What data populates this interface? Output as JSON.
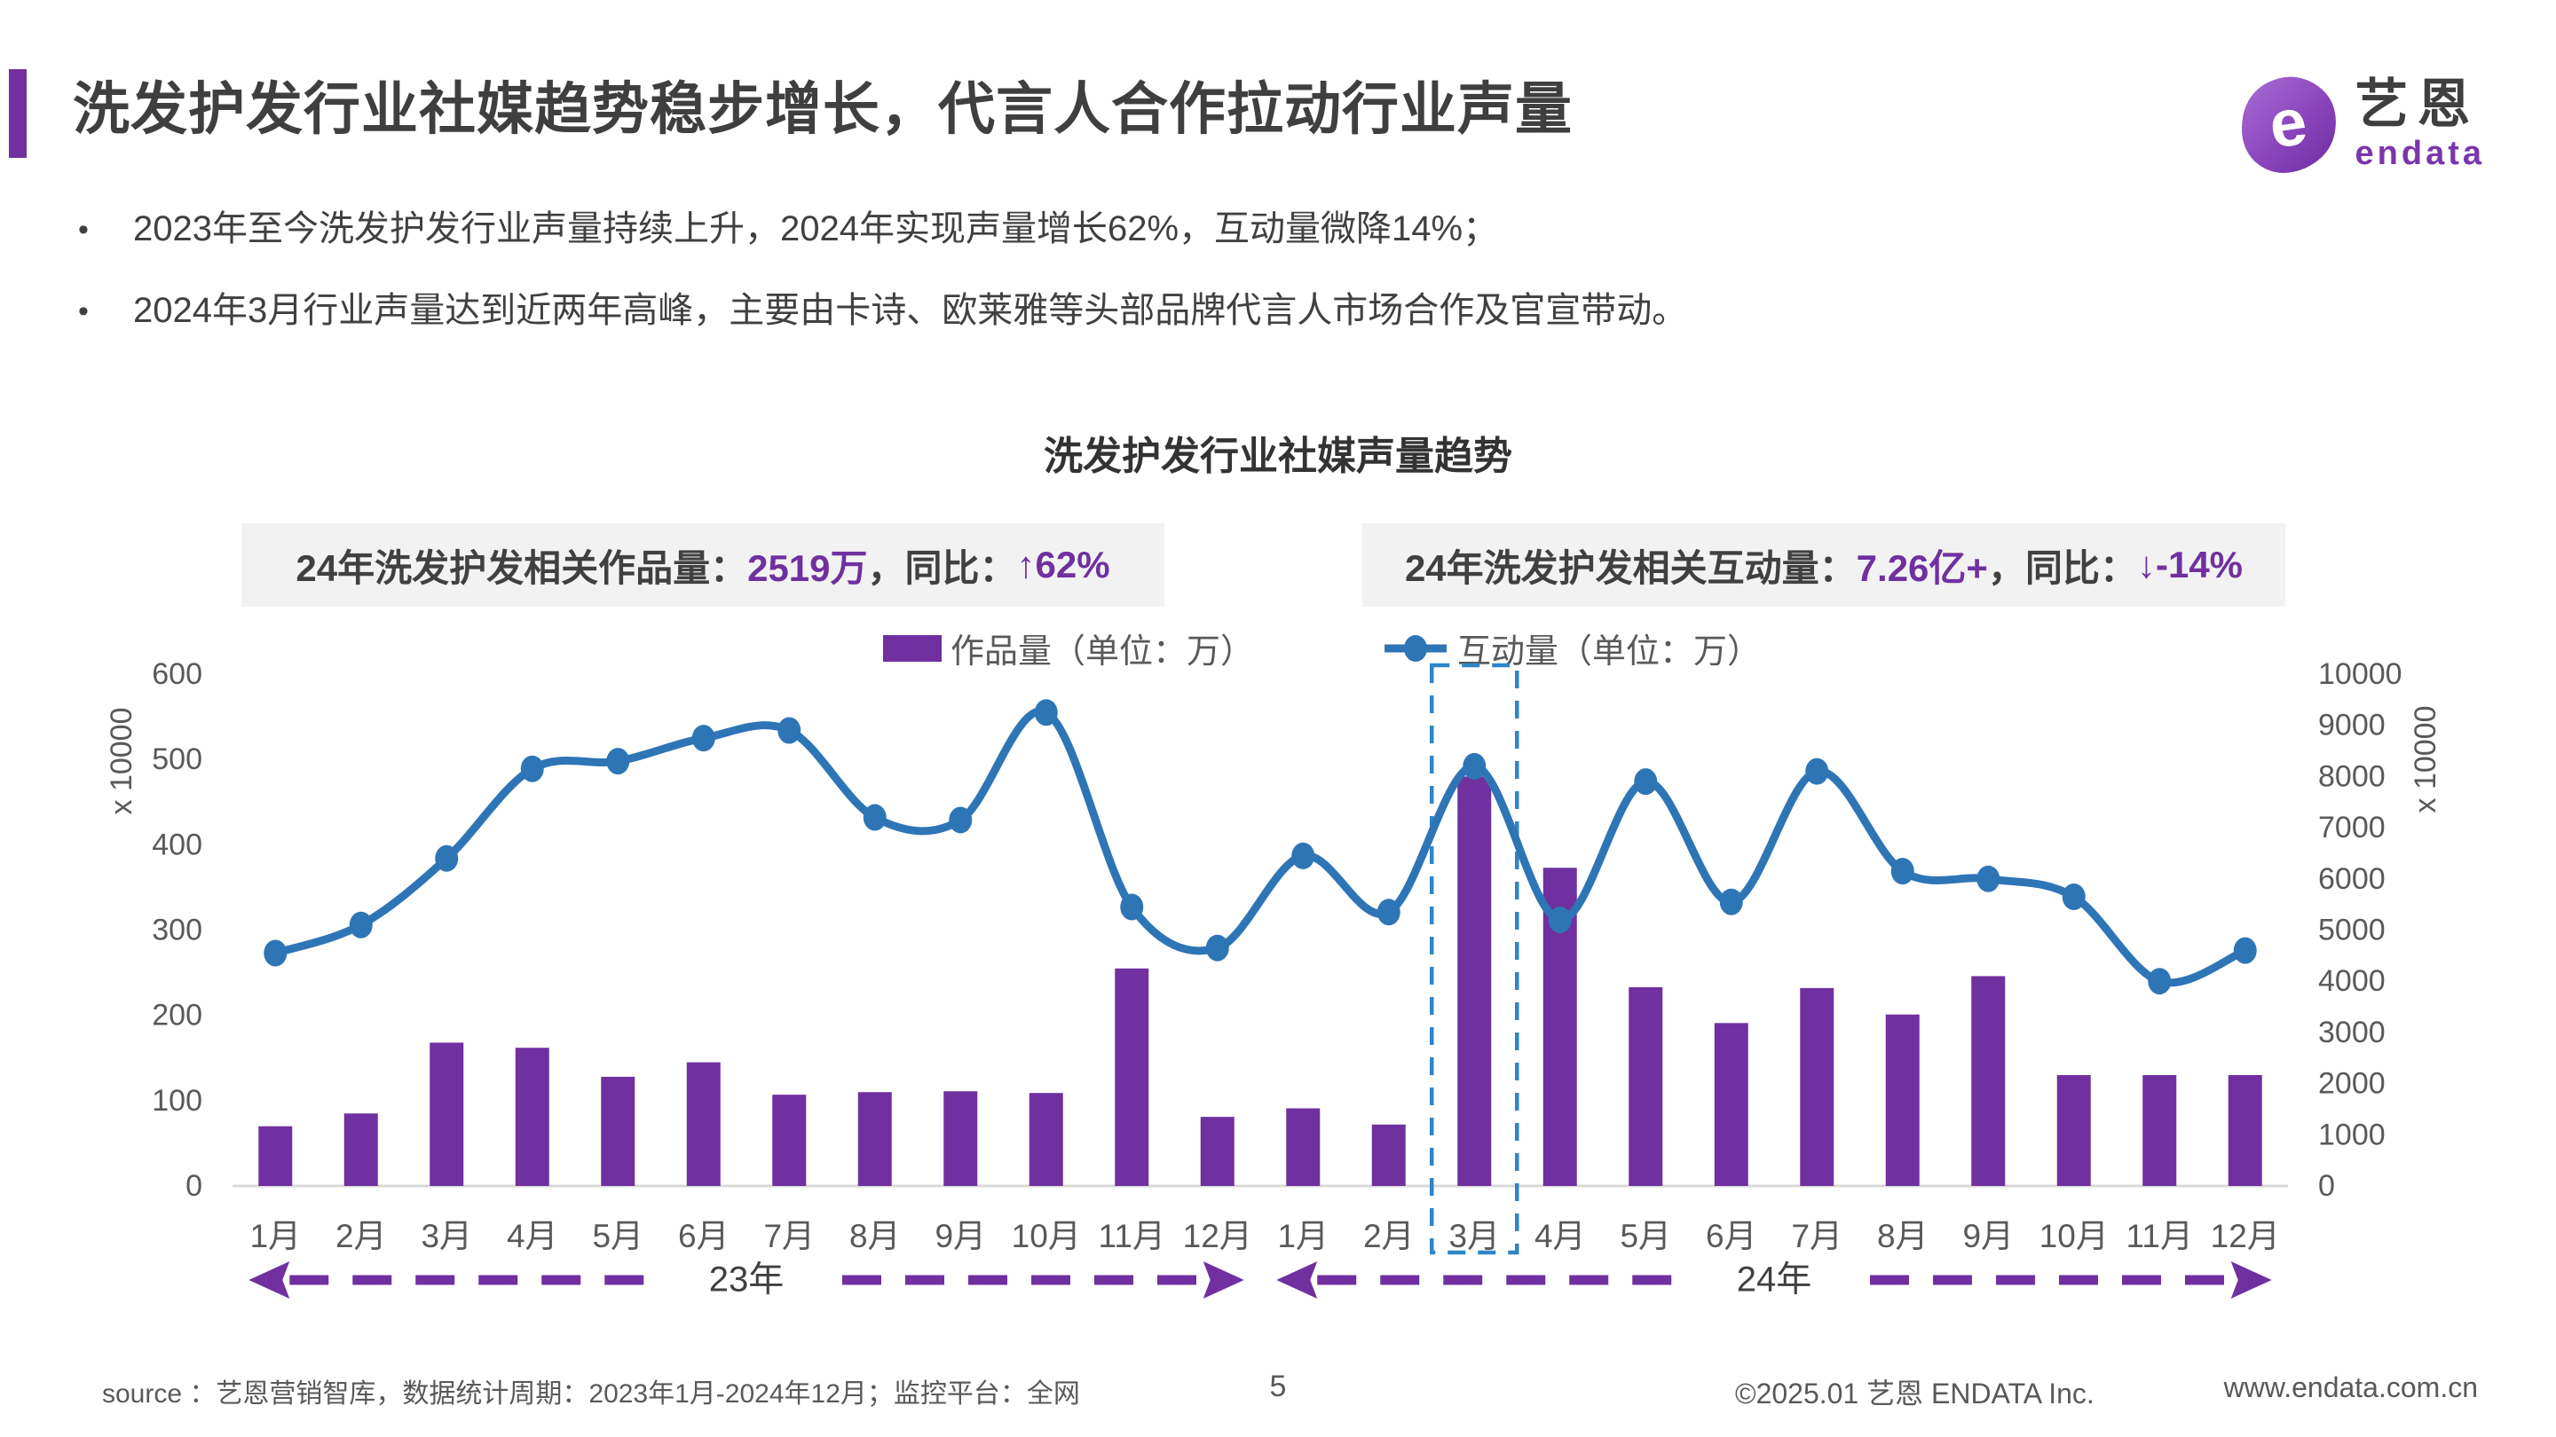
{
  "page": {
    "title": "洗发护发行业社媒趋势稳步增长，代言人合作拉动行业声量",
    "bullets": [
      "2023年至今洗发护发行业声量持续上升，2024年实现声量增长62%，互动量微降14%；",
      "2024年3月行业声量达到近两年高峰，主要由卡诗、欧莱雅等头部品牌代言人市场合作及官宣带动。"
    ],
    "logo": {
      "zh": "艺恩",
      "en": "endata",
      "mark": "e"
    },
    "footer": {
      "source": "source ：艺恩营销智库，数据统计周期：2023年1月-2024年12月；监控平台：全网",
      "page_number": "5",
      "copyright": "©2025.01  艺恩 ENDATA Inc.",
      "url": "www.endata.com.cn"
    }
  },
  "stat_boxes": {
    "works": {
      "label1": "24年洗发护发相关作品量：",
      "value1": "2519万",
      "label2": "，同比：",
      "value2": "↑62%"
    },
    "engagement": {
      "label1": "24年洗发护发相关互动量：",
      "value1": "7.26亿+",
      "label2": "，同比：",
      "value2": "↓-14%"
    }
  },
  "colors": {
    "accent_purple": "#7030A0",
    "line_blue": "#2E75B6",
    "highlight_blue": "#2E86C8",
    "axis_gray": "#595959",
    "baseline_gray": "#D9D9D9",
    "year_label_gray": "#404040"
  },
  "chart_data": {
    "type": "bar",
    "subtype": "bar+line combo, dual axis",
    "title": "洗发护发行业社媒声量趋势",
    "categories": [
      "1月",
      "2月",
      "3月",
      "4月",
      "5月",
      "6月",
      "7月",
      "8月",
      "9月",
      "10月",
      "11月",
      "12月",
      "1月",
      "2月",
      "3月",
      "4月",
      "5月",
      "6月",
      "7月",
      "8月",
      "9月",
      "10月",
      "11月",
      "12月"
    ],
    "year_groups": [
      {
        "label": "23年",
        "start": 0,
        "end": 11
      },
      {
        "label": "24年",
        "start": 12,
        "end": 23
      }
    ],
    "series": [
      {
        "name": "作品量（单位：万）",
        "type": "bar",
        "axis": "left",
        "color": "#7030A0",
        "values": [
          70,
          85,
          168,
          162,
          128,
          145,
          107,
          110,
          111,
          109,
          255,
          81,
          91,
          72,
          480,
          373,
          233,
          191,
          232,
          201,
          246,
          130,
          130,
          130
        ]
      },
      {
        "name": "互动量（单位：万）",
        "type": "line",
        "axis": "right",
        "color": "#2E75B6",
        "values": [
          4550,
          5100,
          6400,
          8150,
          8300,
          8750,
          8900,
          7200,
          7150,
          9250,
          5450,
          4650,
          6450,
          5350,
          8200,
          5200,
          7900,
          5550,
          8100,
          6150,
          6000,
          5650,
          4000,
          4600
        ]
      }
    ],
    "left_axis": {
      "min": 0,
      "max": 600,
      "step": 100,
      "unit": "x 10000"
    },
    "right_axis": {
      "min": 0,
      "max": 10000,
      "step": 1000,
      "unit": "x 10000"
    },
    "highlight": {
      "index": 14,
      "style": "dashed-box",
      "color": "#2E86C8"
    },
    "legend_position": "top-center",
    "grid": "off"
  }
}
